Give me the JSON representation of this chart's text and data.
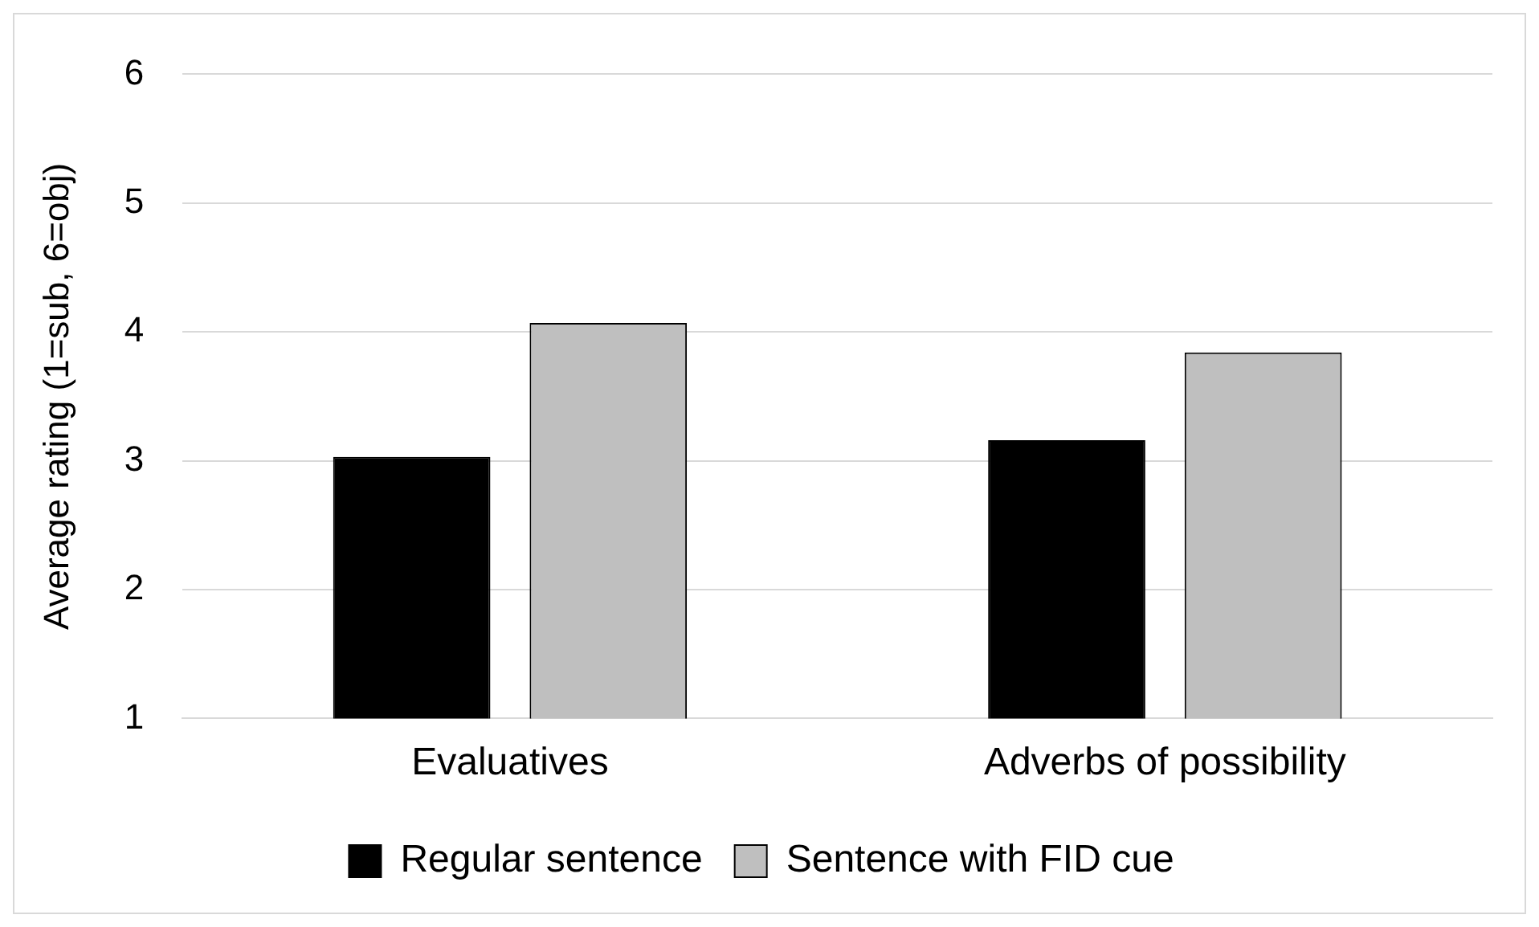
{
  "chart_data": {
    "type": "bar",
    "ylabel": "Average rating (1=sub, 6=obj)",
    "categories": [
      "Evaluatives",
      "Adverbs of possibility"
    ],
    "series": [
      {
        "name": "Regular sentence",
        "color": "#000000",
        "values": [
          3.03,
          3.16
        ]
      },
      {
        "name": "Sentence with FID cue",
        "color": "#bfbfbf",
        "values": [
          4.07,
          3.84
        ]
      }
    ],
    "ylim": [
      1,
      6
    ],
    "yticks": [
      1,
      2,
      3,
      4,
      5,
      6
    ],
    "grid": "y",
    "legend": "bottom"
  }
}
